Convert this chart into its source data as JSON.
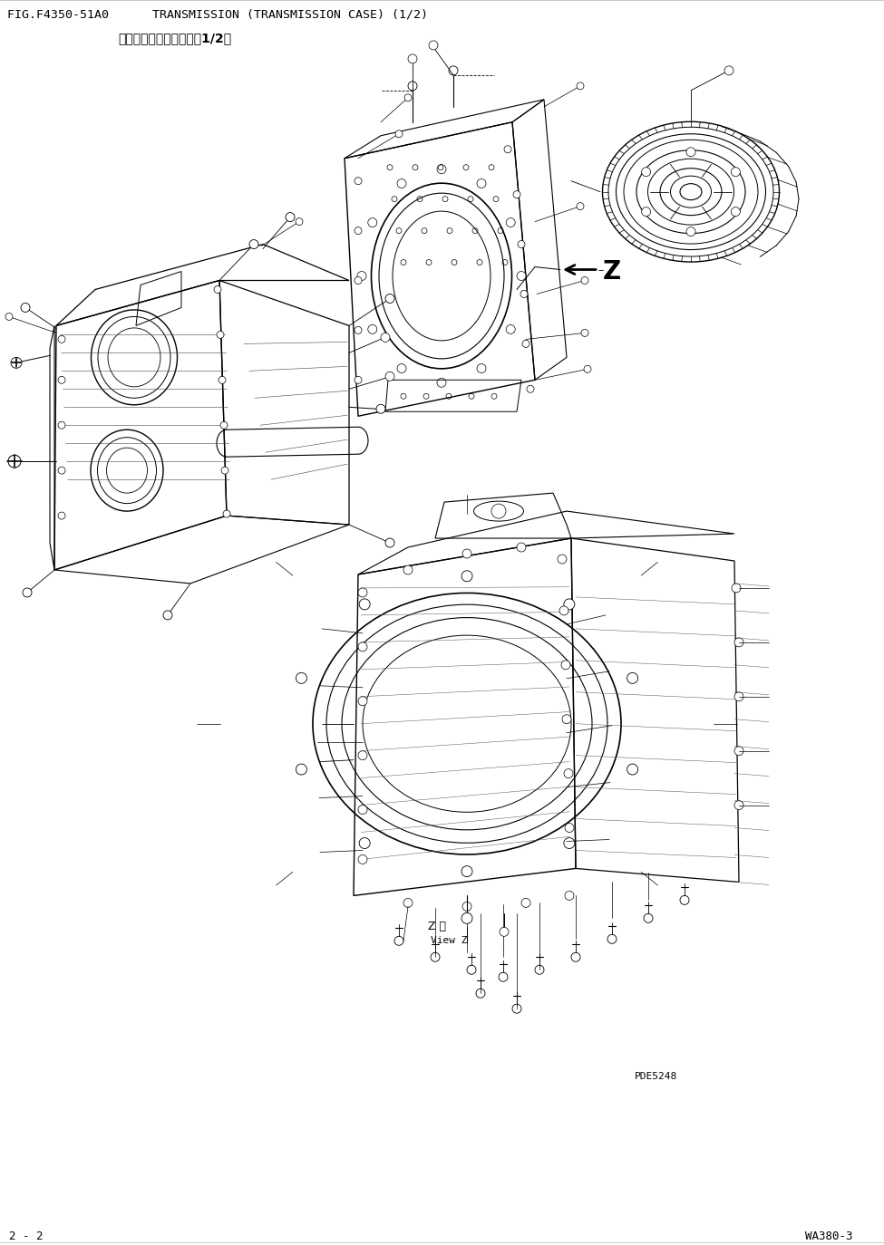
{
  "title_line1": "FIG.F4350-51A0      TRANSMISSION (TRANSMISSION CASE) (1/2)",
  "title_line2": "変速算（変速算壳体）（1/2）",
  "footer_left": "2 - 2",
  "footer_right": "WA380-3",
  "watermark": "PDE5248",
  "view_label_chinese": "Z 検",
  "view_label_english": "View Z",
  "bg_color": "#ffffff",
  "line_color": "#000000",
  "title_fontsize": 9.5,
  "subtitle_fontsize": 10,
  "footer_fontsize": 9
}
